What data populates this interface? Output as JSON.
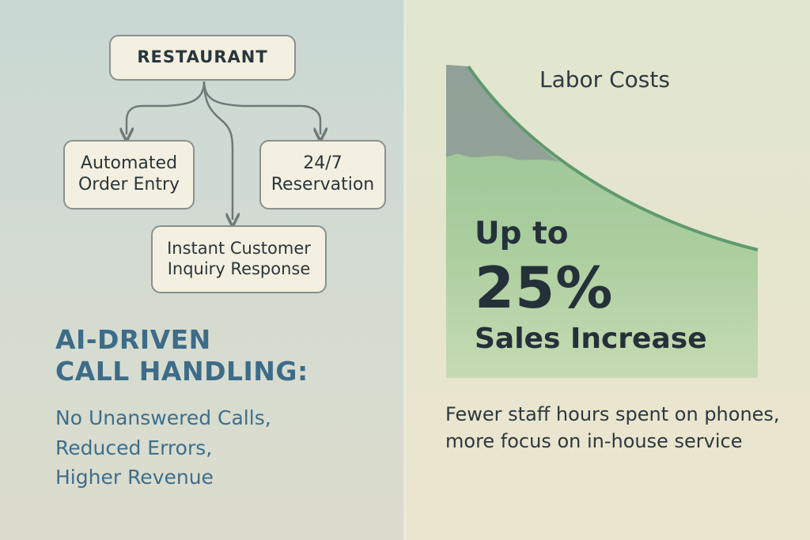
{
  "colors": {
    "left_background": "#cfd9d2",
    "right_background": "#e5e5cf",
    "node_fill": "#f4f0e1",
    "node_border": "#8a908c",
    "connector": "#6f7a78",
    "headline": "#3d6c88",
    "curve_line": "#5f9a6d",
    "curve_fill": "#a6cb9d",
    "curve_shadow": "#8f9b98"
  },
  "diagram": {
    "root": "RESTAURANT",
    "children": [
      {
        "label_line1": "Automated",
        "label_line2": "Order Entry"
      },
      {
        "label_line1": "24/7",
        "label_line2": "Reservation"
      },
      {
        "label_line1": "Instant Customer",
        "label_line2": "Inquiry Response"
      }
    ]
  },
  "headline": {
    "line1": "AI-DRIVEN",
    "line2": "CALL HANDLING:"
  },
  "benefits": [
    "No Unanswered Calls,",
    "Reduced Errors,",
    "Higher Revenue"
  ],
  "chart": {
    "title": "Labor Costs",
    "stat_prefix": "Up to",
    "stat_value": "25%",
    "stat_label": "Sales Increase"
  },
  "footnote": {
    "line1": "Fewer staff hours spent on phones,",
    "line2": "more focus on in-house service"
  }
}
